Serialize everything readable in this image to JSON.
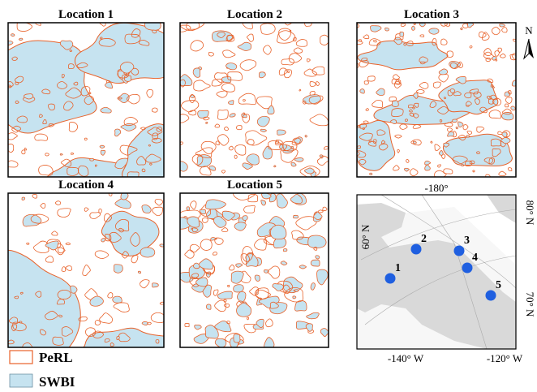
{
  "panels": [
    {
      "title": "Location 1"
    },
    {
      "title": "Location 2"
    },
    {
      "title": "Location 3"
    },
    {
      "title": "Location 4"
    },
    {
      "title": "Location 5"
    }
  ],
  "legend": [
    {
      "label": "PeRL"
    },
    {
      "label": "SWBI"
    }
  ],
  "north": "N",
  "inset": {
    "lon_top": "-180°",
    "lat_60": "60° N",
    "lat_80": "80° N",
    "lat_70": "70° N",
    "lon_140": "-140° W",
    "lon_120": "-120° W",
    "sites": [
      "1",
      "2",
      "3",
      "4",
      "5"
    ]
  }
}
